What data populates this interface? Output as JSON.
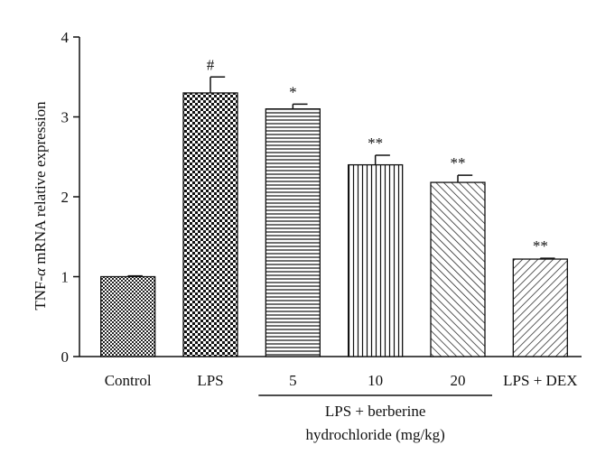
{
  "chart_data": {
    "type": "bar",
    "categories": [
      "Control",
      "LPS",
      "5",
      "10",
      "20",
      "LPS + DEX"
    ],
    "values": [
      1.0,
      3.3,
      3.1,
      2.4,
      2.18,
      1.22
    ],
    "errors": [
      0.01,
      0.2,
      0.06,
      0.12,
      0.09,
      0.01
    ],
    "significance": [
      "",
      "#",
      "*",
      "**",
      "**",
      "**"
    ],
    "patterns": [
      "checker-fine",
      "checker",
      "horizontal-lines",
      "vertical-lines",
      "diagonal-up",
      "diagonal-down"
    ],
    "ylabel_prefix": "TNF-",
    "ylabel_alpha": "α",
    "ylabel_suffix": " mRNA relative expression",
    "ylim": [
      0,
      4
    ],
    "yticks": [
      "0",
      "1",
      "2",
      "3",
      "4"
    ],
    "group_label_line1": "LPS + berberine",
    "group_label_line2": "hydrochloride (mg/kg)",
    "group_span": [
      2,
      4
    ],
    "grid": false
  }
}
